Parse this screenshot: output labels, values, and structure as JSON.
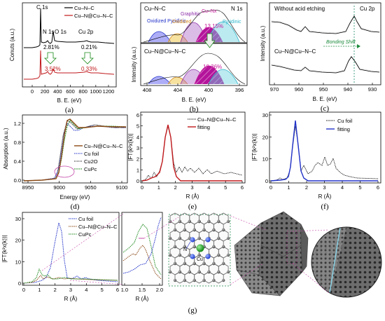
{
  "colors": {
    "black": "#000000",
    "red": "#c0191c",
    "blue": "#2233c8",
    "green": "#1f8a1f",
    "orange": "#d4881c",
    "magenta": "#c5189a",
    "brown": "#8b4a16",
    "purple": "#8a2ca8",
    "cyan": "#28b4c8",
    "gray": "#9a9a9a",
    "teal": "#2c8c7a"
  },
  "labels": {
    "a": "(a)",
    "b": "(b)",
    "c": "(c)",
    "d": "(d)",
    "e": "(e)",
    "f": "(f)",
    "g": "(g)"
  },
  "chart_data": [
    {
      "panel": "a",
      "type": "line",
      "xlabel": "B. E. (eV)",
      "ylabel": "Conuts (a.u.)",
      "xticks": [
        "0",
        "200",
        "400",
        "600",
        "800",
        "1000",
        "1200"
      ],
      "series": [
        {
          "name": "Cu–N–C",
          "color": "black"
        },
        {
          "name": "Cu–N@Cu–N–C",
          "color": "red"
        }
      ],
      "peaks": [
        "C 1s",
        "O 1s",
        "N 1s",
        "Cu 2p"
      ],
      "annotations": {
        "n_top": "2.81%",
        "cu_top": "0.21%",
        "n_bot": "3.52%",
        "cu_bot": "0.33%"
      }
    },
    {
      "panel": "b",
      "type": "area",
      "title": "N 1s",
      "xlabel": "B. E. (eV)",
      "ylabel": "Intensity (a.u.)",
      "xticks": [
        "408",
        "404",
        "400",
        "396"
      ],
      "series": [
        {
          "name": "Oxidized Pyridinic",
          "color": "blue"
        },
        {
          "name": "Graphitic",
          "color": "purple"
        },
        {
          "name": "Oxidized",
          "color": "orange"
        },
        {
          "name": "Cu–Nx",
          "color": "magenta"
        },
        {
          "name": "Pyridinic",
          "color": "cyan"
        }
      ],
      "annotations": {
        "top_label": "Cu–N–C",
        "top_pct": "13.15%",
        "bot_label": "Cu–N@Cu–N–C",
        "bot_pct": "18.36%"
      }
    },
    {
      "panel": "c",
      "type": "line",
      "title": "Cu 2p",
      "xlabel": "B. E. (eV)",
      "ylabel": "Intensity (a.u.)",
      "xticks": [
        "970",
        "960",
        "950",
        "940",
        "930"
      ],
      "annotations": {
        "top": "Without acid etching",
        "bot": "Cu–N@Cu–N–C",
        "shift": "Bonding Shift"
      }
    },
    {
      "panel": "d",
      "type": "line",
      "xlabel": "Energy (eV)",
      "ylabel": "Absorption (a.u.)",
      "xticks": [
        "8950",
        "9000",
        "9050",
        "9100"
      ],
      "yticks": [
        "0.0",
        "0.4",
        "0.8",
        "1.2"
      ],
      "series": [
        {
          "name": "Cu–N@Cu–N–C",
          "color": "brown"
        },
        {
          "name": "Cu foil",
          "color": "blue"
        },
        {
          "name": "Cu2O",
          "color": "black"
        },
        {
          "name": "CuPc",
          "color": "green"
        }
      ]
    },
    {
      "panel": "e",
      "type": "line",
      "xlabel": "R (Å)",
      "ylabel": "|FT(k²x(k))|",
      "xticks": [
        "0",
        "1",
        "2",
        "3",
        "4",
        "5",
        "6"
      ],
      "yticks": [
        "0",
        "1",
        "2",
        "3",
        "4",
        "5",
        "6"
      ],
      "series": [
        {
          "name": "Cu–N@Cu–N–C",
          "color": "black"
        },
        {
          "name": "fitting",
          "color": "red"
        }
      ]
    },
    {
      "panel": "f",
      "type": "line",
      "xlabel": "R (Å)",
      "ylabel": "|FT(k²x(k))|",
      "xticks": [
        "0",
        "1",
        "2",
        "3",
        "4",
        "5",
        "6"
      ],
      "yticks": [
        "0",
        "10",
        "20",
        "30"
      ],
      "series": [
        {
          "name": "Cu foil",
          "color": "black"
        },
        {
          "name": "fitting",
          "color": "blue"
        }
      ]
    },
    {
      "panel": "g",
      "type": "line",
      "xlabel": "R (Å)",
      "ylabel": "|FT(k²x(k))|",
      "xticks": [
        "0",
        "1",
        "2",
        "3",
        "4",
        "5",
        "6"
      ],
      "yticks": [
        "0",
        "10",
        "20",
        "30"
      ],
      "inset_xticks": [
        "1.0",
        "1.5",
        "2.0"
      ],
      "inset_xlabel": "R (Å)",
      "series": [
        {
          "name": "Cu foil",
          "color": "blue"
        },
        {
          "name": "Cu–N@Cu–N–C",
          "color": "brown"
        },
        {
          "name": "CuPc",
          "color": "green"
        }
      ],
      "atom_labels": {
        "n": "N",
        "cu": "Cu"
      }
    }
  ]
}
